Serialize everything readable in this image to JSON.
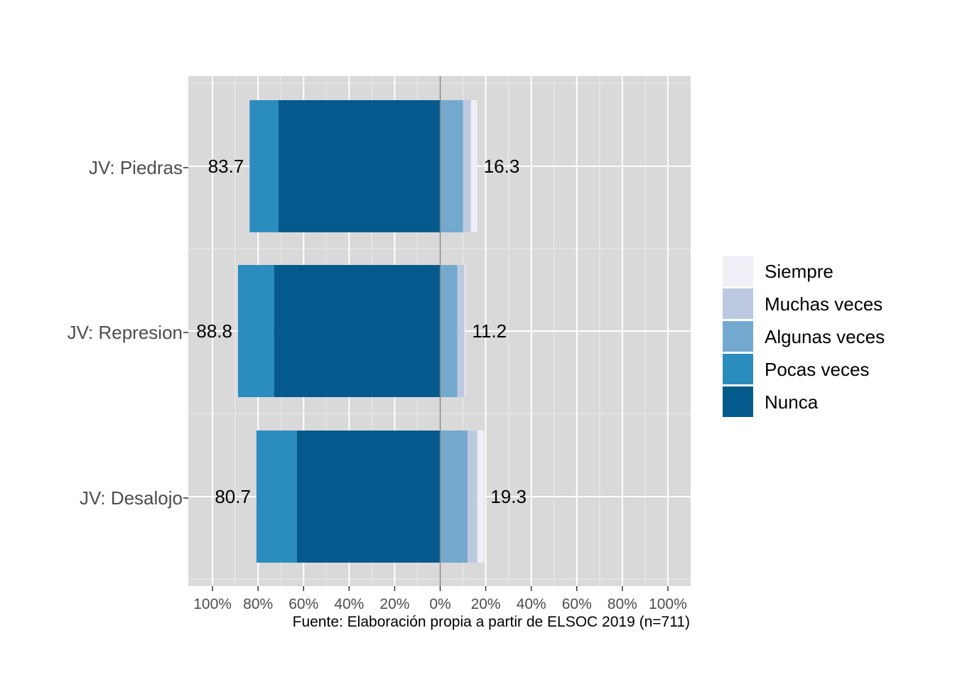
{
  "chart_data": {
    "type": "bar",
    "orientation": "horizontal",
    "stacking": "diverging",
    "categories": [
      "JV: Piedras",
      "JV: Represion",
      "JV: Desalojo"
    ],
    "series": [
      {
        "name": "Nunca",
        "side": "negative",
        "color": "#045a8d",
        "values": [
          71.0,
          73.0,
          63.0
        ]
      },
      {
        "name": "Pocas veces",
        "side": "negative",
        "color": "#2b8cbe",
        "values": [
          12.7,
          15.8,
          17.7
        ]
      },
      {
        "name": "Algunas veces",
        "side": "positive",
        "color": "#74a9cf",
        "values": [
          10.0,
          7.5,
          12.0
        ]
      },
      {
        "name": "Muchas veces",
        "side": "positive",
        "color": "#bdc9e1",
        "values": [
          3.5,
          3.2,
          4.3
        ]
      },
      {
        "name": "Siempre",
        "side": "positive",
        "color": "#f1eef6",
        "values": [
          2.8,
          0.5,
          3.0
        ]
      }
    ],
    "totals": {
      "negative": [
        "83.7",
        "88.8",
        "80.7"
      ],
      "positive": [
        "16.3",
        "11.2",
        "19.3"
      ]
    },
    "x_ticks": [
      "100%",
      "80%",
      "60%",
      "40%",
      "20%",
      "0%",
      "20%",
      "40%",
      "60%",
      "80%",
      "100%"
    ],
    "xlim": [
      -100,
      100
    ],
    "grid": true,
    "legend_position": "right",
    "legend_order": [
      "Siempre",
      "Muchas veces",
      "Algunas veces",
      "Pocas veces",
      "Nunca"
    ],
    "caption": "Fuente: Elaboración propia  a partir de ELSOC 2019 (n=711)"
  }
}
